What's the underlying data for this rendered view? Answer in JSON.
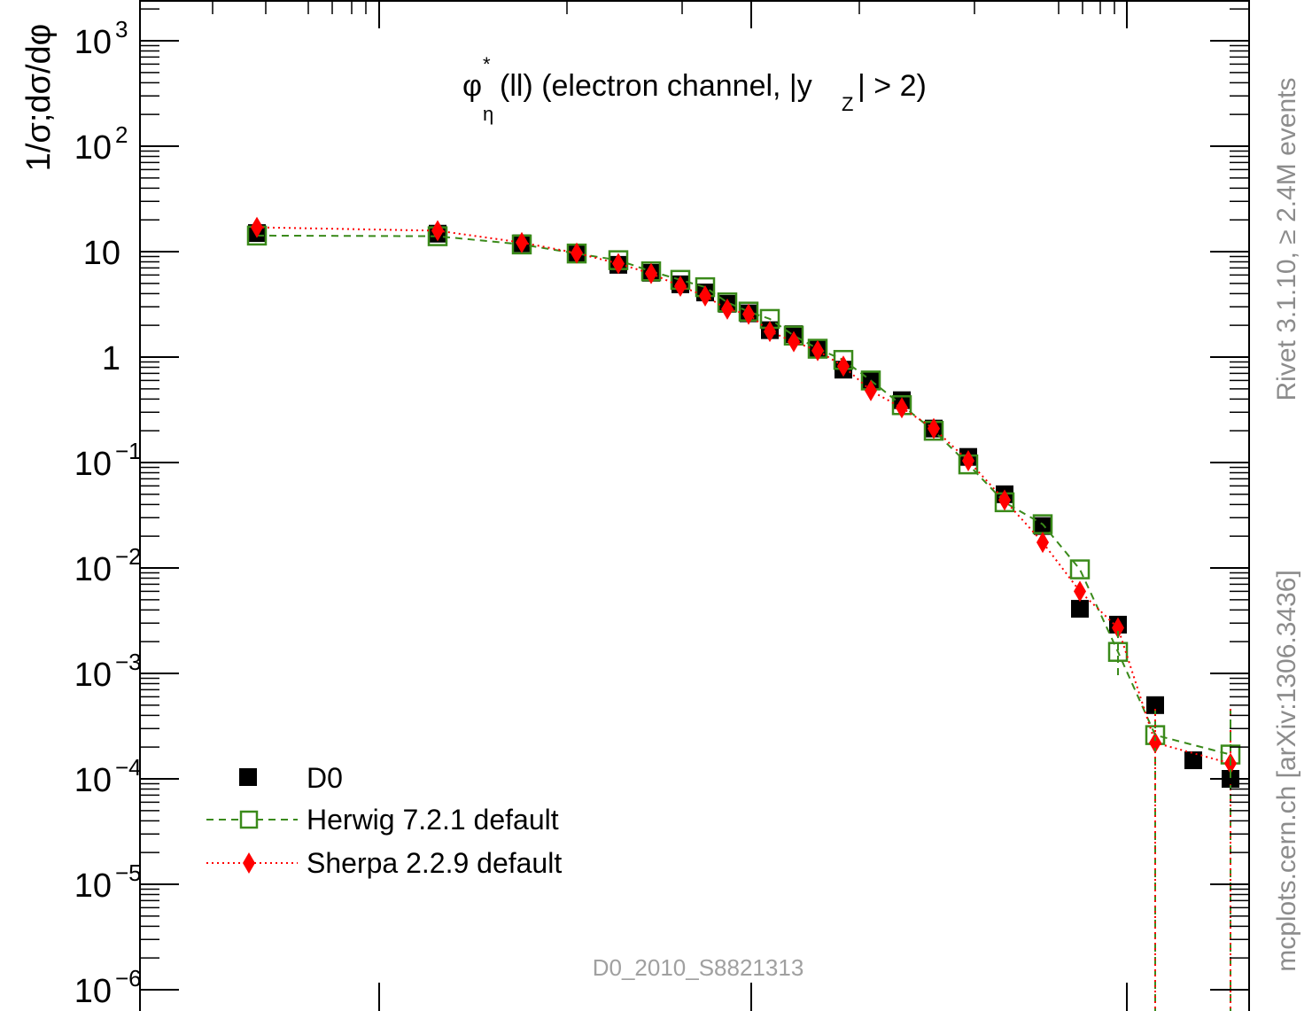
{
  "chart_data": {
    "type": "scatter",
    "yscale": "log",
    "ylim": [
      5e-07,
      2000
    ],
    "ylabel": "1/σ;dσ/dφ",
    "annotation": {
      "main": "φ",
      "star": "*",
      "sub": "η",
      "rest1": "(ll) (electron channel, |y",
      "zsub": "Z",
      "rest2": "| > 2)"
    },
    "watermark": "D0_2010_S8821313",
    "side_text": {
      "rivet": "Rivet 3.1.10, ≥ 2.4M events",
      "mcplots": "mcplots.cern.ch [arXiv:1306.3436]"
    },
    "y_ticks": [
      {
        "value": 1000,
        "label": "10",
        "exp": "3"
      },
      {
        "value": 100,
        "label": "10",
        "exp": "2"
      },
      {
        "value": 10,
        "label": "10",
        "exp": ""
      },
      {
        "value": 1,
        "label": "1",
        "exp": ""
      },
      {
        "value": 0.1,
        "label": "10",
        "exp": "−1"
      },
      {
        "value": 0.01,
        "label": "10",
        "exp": "−2"
      },
      {
        "value": 0.001,
        "label": "10",
        "exp": "−3"
      },
      {
        "value": 0.0001,
        "label": "10",
        "exp": "−4"
      },
      {
        "value": 1e-05,
        "label": "10",
        "exp": "−5"
      },
      {
        "value": 1e-06,
        "label": "10",
        "exp": "−6"
      }
    ],
    "legend_position": "bottom-left",
    "series": [
      {
        "name": "D0",
        "color": "#000000",
        "marker": "filled-square",
        "points": [
          {
            "x": 290,
            "y": 15
          },
          {
            "x": 494,
            "y": 14.8
          },
          {
            "x": 589,
            "y": 12
          },
          {
            "x": 651,
            "y": 9.5
          },
          {
            "x": 698,
            "y": 7.5
          },
          {
            "x": 735,
            "y": 6.3
          },
          {
            "x": 768,
            "y": 4.9
          },
          {
            "x": 796,
            "y": 4.1
          },
          {
            "x": 821,
            "y": 3.2
          },
          {
            "x": 845,
            "y": 2.6
          },
          {
            "x": 869,
            "y": 1.8
          },
          {
            "x": 896,
            "y": 1.65
          },
          {
            "x": 923,
            "y": 1.2
          },
          {
            "x": 952,
            "y": 0.76
          },
          {
            "x": 983,
            "y": 0.59
          },
          {
            "x": 1018,
            "y": 0.39
          },
          {
            "x": 1054,
            "y": 0.21
          },
          {
            "x": 1093,
            "y": 0.113
          },
          {
            "x": 1134,
            "y": 0.05
          },
          {
            "x": 1177,
            "y": 0.025
          },
          {
            "x": 1219,
            "y": 0.0041
          },
          {
            "x": 1262,
            "y": 0.0029
          },
          {
            "x": 1304,
            "y": 0.0005
          },
          {
            "x": 1347,
            "y": 0.00015
          },
          {
            "x": 1389,
            "y": 0.0001
          }
        ]
      },
      {
        "name": "Herwig 7.2.1 default",
        "color": "#3a8a1a",
        "marker": "open-square",
        "line": "dashed",
        "points": [
          {
            "x": 290,
            "y": 14.2
          },
          {
            "x": 494,
            "y": 14.0
          },
          {
            "x": 589,
            "y": 11.7
          },
          {
            "x": 651,
            "y": 9.6
          },
          {
            "x": 698,
            "y": 8.3
          },
          {
            "x": 735,
            "y": 6.5
          },
          {
            "x": 768,
            "y": 5.4
          },
          {
            "x": 796,
            "y": 4.6
          },
          {
            "x": 821,
            "y": 3.3
          },
          {
            "x": 845,
            "y": 2.7
          },
          {
            "x": 869,
            "y": 2.3
          },
          {
            "x": 896,
            "y": 1.6
          },
          {
            "x": 923,
            "y": 1.2
          },
          {
            "x": 952,
            "y": 0.94
          },
          {
            "x": 983,
            "y": 0.6
          },
          {
            "x": 1018,
            "y": 0.35
          },
          {
            "x": 1054,
            "y": 0.2
          },
          {
            "x": 1093,
            "y": 0.096
          },
          {
            "x": 1134,
            "y": 0.042
          },
          {
            "x": 1177,
            "y": 0.026
          },
          {
            "x": 1219,
            "y": 0.0097
          },
          {
            "x": 1262,
            "y": 0.0016
          },
          {
            "x": 1304,
            "y": 0.00026
          },
          {
            "x": 1389,
            "y": 0.00017
          }
        ]
      },
      {
        "name": "Sherpa 2.2.9 default",
        "color": "#ff0000",
        "marker": "filled-diamond",
        "line": "dotted",
        "points": [
          {
            "x": 290,
            "y": 17
          },
          {
            "x": 494,
            "y": 15.8
          },
          {
            "x": 589,
            "y": 12.2
          },
          {
            "x": 651,
            "y": 9.7
          },
          {
            "x": 698,
            "y": 7.7
          },
          {
            "x": 735,
            "y": 6.2
          },
          {
            "x": 768,
            "y": 4.7
          },
          {
            "x": 796,
            "y": 3.8
          },
          {
            "x": 821,
            "y": 2.85
          },
          {
            "x": 845,
            "y": 2.55
          },
          {
            "x": 869,
            "y": 1.75
          },
          {
            "x": 896,
            "y": 1.4
          },
          {
            "x": 923,
            "y": 1.15
          },
          {
            "x": 952,
            "y": 0.82
          },
          {
            "x": 983,
            "y": 0.48
          },
          {
            "x": 1018,
            "y": 0.33
          },
          {
            "x": 1054,
            "y": 0.21
          },
          {
            "x": 1093,
            "y": 0.104
          },
          {
            "x": 1134,
            "y": 0.044
          },
          {
            "x": 1177,
            "y": 0.0175
          },
          {
            "x": 1219,
            "y": 0.006
          },
          {
            "x": 1262,
            "y": 0.0027
          },
          {
            "x": 1304,
            "y": 0.00022
          },
          {
            "x": 1389,
            "y": 0.00014
          }
        ]
      }
    ]
  }
}
